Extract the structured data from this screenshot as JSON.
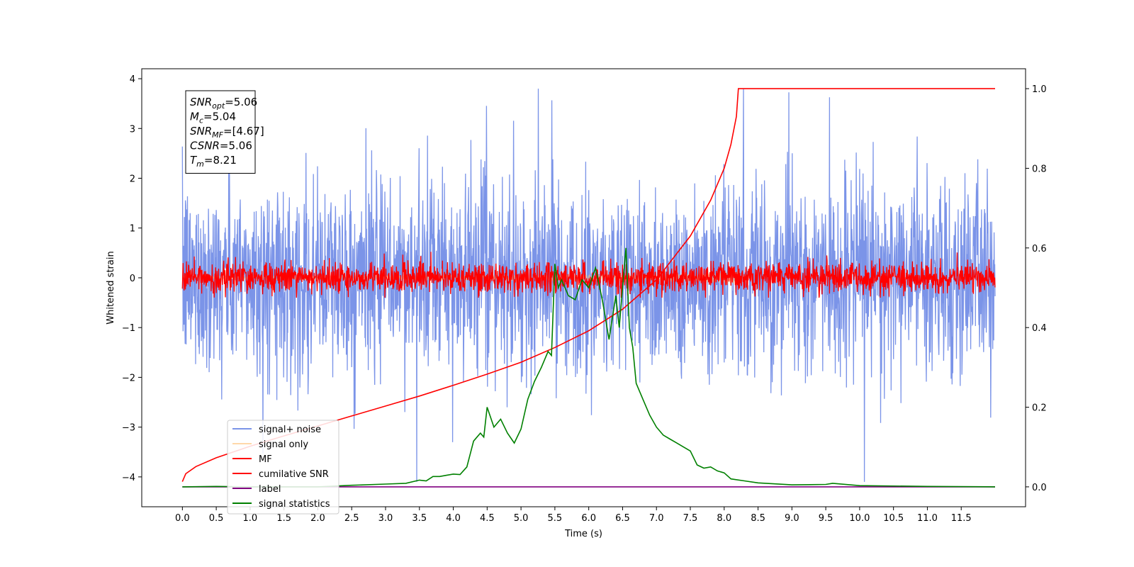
{
  "chart_data": {
    "type": "line",
    "title": "",
    "xlabel": "Time (s)",
    "ylabel": "Whitened strain",
    "ylabel_right": "",
    "xlim": [
      -0.6,
      12.45
    ],
    "ylim": [
      -4.6,
      4.2
    ],
    "ylim_right": [
      -0.05,
      1.05
    ],
    "x_ticks": [
      0.0,
      0.5,
      1.0,
      1.5,
      2.0,
      2.5,
      3.0,
      3.5,
      4.0,
      4.5,
      5.0,
      5.5,
      6.0,
      6.5,
      7.0,
      7.5,
      8.0,
      8.5,
      9.0,
      9.5,
      10.0,
      10.5,
      11.0,
      11.5
    ],
    "x_tick_labels": [
      "0.0",
      "0.5",
      "1.0",
      "1.5",
      "2.0",
      "2.5",
      "3.0",
      "3.5",
      "4.0",
      "4.5",
      "5.0",
      "5.5",
      "6.0",
      "6.5",
      "7.0",
      "7.5",
      "8.0",
      "8.5",
      "9.0",
      "9.5",
      "10.0",
      "10.5",
      "11.0",
      "11.5"
    ],
    "y_ticks": [
      4,
      3,
      2,
      1,
      0,
      -1,
      -2,
      -3,
      -4
    ],
    "y_tick_labels": [
      "4",
      "3",
      "2",
      "1",
      "0",
      "−1",
      "−2",
      "−3",
      "−4"
    ],
    "y_right_ticks": [
      1.0,
      0.8,
      0.6,
      0.4,
      0.2,
      0.0
    ],
    "y_right_tick_labels": [
      "1.0",
      "0.8",
      "0.6",
      "0.4",
      "0.2",
      "0.0"
    ],
    "annotation": [
      {
        "var": "SNR",
        "sub": "opt",
        "value": "=5.06"
      },
      {
        "var": "M",
        "sub": "c",
        "value": "=5.04"
      },
      {
        "var": "SNR",
        "sub": "MF",
        "value": "=[4.67]"
      },
      {
        "var": "CSNR",
        "sub": "",
        "value": "=5.06"
      },
      {
        "var": "T",
        "sub": "m",
        "value": "=8.21"
      }
    ],
    "legend_position": "lower-left",
    "series": [
      {
        "name": "signal+ noise",
        "color": "#7b94e8",
        "axis": "left",
        "kind": "noise",
        "amplitude_range": [
          -4.1,
          3.8
        ],
        "x_range": [
          0.0,
          12.0
        ]
      },
      {
        "name": "signal only",
        "color": "#ffbe6f",
        "axis": "left",
        "kind": "chirp",
        "amplitude_range": [
          -0.4,
          0.4
        ],
        "x_range": [
          0.0,
          8.21
        ]
      },
      {
        "name": "MF",
        "color": "#ff0000",
        "axis": "left",
        "kind": "noise",
        "amplitude_range": [
          -0.4,
          1.0
        ],
        "x_range": [
          0.0,
          12.0
        ]
      },
      {
        "name": "cumilative SNR",
        "color": "#ff0000",
        "axis": "right",
        "x": [
          0.0,
          0.05,
          0.2,
          0.5,
          1.0,
          1.5,
          2.0,
          2.5,
          3.0,
          3.5,
          4.0,
          4.5,
          5.0,
          5.5,
          6.0,
          6.5,
          7.0,
          7.5,
          7.8,
          8.0,
          8.1,
          8.18,
          8.21,
          12.0
        ],
        "values": [
          0.013,
          0.033,
          0.051,
          0.073,
          0.102,
          0.128,
          0.153,
          0.178,
          0.203,
          0.228,
          0.255,
          0.283,
          0.313,
          0.35,
          0.392,
          0.446,
          0.52,
          0.63,
          0.72,
          0.8,
          0.86,
          0.93,
          1.0,
          1.0
        ]
      },
      {
        "name": "label",
        "color": "#800080",
        "axis": "right",
        "x": [
          0.0,
          12.0
        ],
        "values": [
          0.0,
          0.0
        ]
      },
      {
        "name": "signal statistics",
        "color": "#008000",
        "axis": "right",
        "x": [
          0.0,
          0.5,
          1.0,
          1.5,
          2.0,
          2.5,
          3.0,
          3.3,
          3.5,
          3.6,
          3.7,
          3.8,
          3.9,
          4.0,
          4.1,
          4.2,
          4.3,
          4.4,
          4.45,
          4.5,
          4.6,
          4.7,
          4.8,
          4.9,
          5.0,
          5.1,
          5.2,
          5.3,
          5.4,
          5.45,
          5.5,
          5.55,
          5.6,
          5.7,
          5.8,
          5.9,
          6.0,
          6.1,
          6.2,
          6.3,
          6.4,
          6.45,
          6.5,
          6.55,
          6.6,
          6.65,
          6.7,
          6.8,
          6.9,
          7.0,
          7.1,
          7.2,
          7.3,
          7.4,
          7.5,
          7.6,
          7.7,
          7.8,
          7.9,
          8.0,
          8.1,
          8.3,
          8.5,
          9.0,
          9.5,
          9.6,
          10.0,
          11.0,
          12.0
        ],
        "values": [
          0.0,
          0.001,
          0.0,
          0.0,
          0.0,
          0.004,
          0.007,
          0.009,
          0.017,
          0.015,
          0.026,
          0.026,
          0.029,
          0.032,
          0.031,
          0.05,
          0.115,
          0.135,
          0.125,
          0.2,
          0.15,
          0.17,
          0.135,
          0.11,
          0.145,
          0.22,
          0.265,
          0.3,
          0.34,
          0.33,
          0.56,
          0.5,
          0.52,
          0.48,
          0.47,
          0.52,
          0.5,
          0.55,
          0.47,
          0.37,
          0.48,
          0.4,
          0.5,
          0.6,
          0.4,
          0.35,
          0.26,
          0.22,
          0.18,
          0.15,
          0.13,
          0.12,
          0.11,
          0.1,
          0.09,
          0.055,
          0.047,
          0.05,
          0.04,
          0.035,
          0.02,
          0.015,
          0.01,
          0.005,
          0.006,
          0.009,
          0.003,
          0.001,
          0.0
        ]
      }
    ]
  }
}
